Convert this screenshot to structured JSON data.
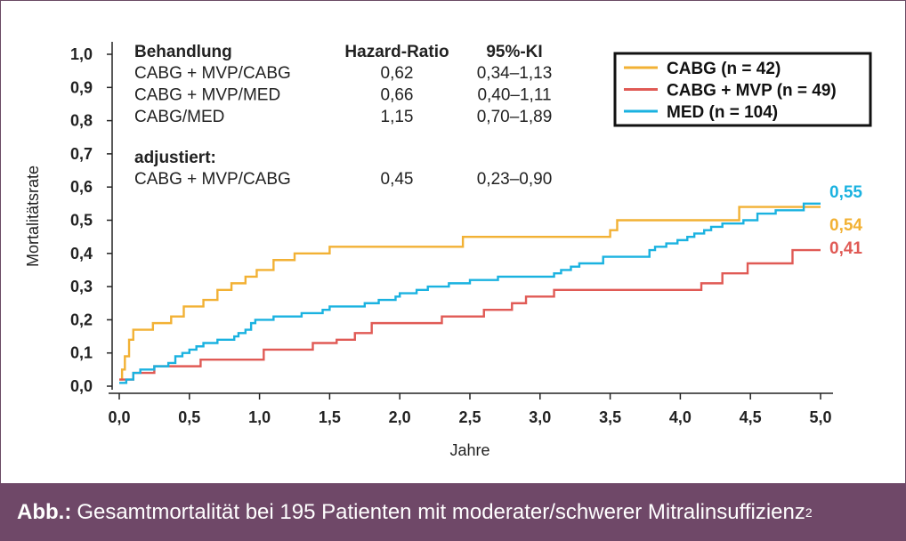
{
  "chart_data": {
    "type": "line",
    "step": true,
    "xlabel": "Jahre",
    "ylabel": "Mortalitätsrate",
    "xlim": [
      0,
      5
    ],
    "ylim": [
      0,
      1
    ],
    "x_ticks": [
      "0,0",
      "0,5",
      "1,0",
      "1,5",
      "2,0",
      "2,5",
      "3,0",
      "3,5",
      "4,0",
      "4,5",
      "5,0"
    ],
    "y_ticks": [
      "0,0",
      "0,1",
      "0,2",
      "0,3",
      "0,4",
      "0,5",
      "0,6",
      "0,7",
      "0,8",
      "0,9",
      "1,0"
    ],
    "grid": false,
    "legend_position": "top-right",
    "series": [
      {
        "name": "CABG (n = 42)",
        "color": "#f2b134",
        "end_label": "0,54",
        "points": [
          [
            0,
            0.02
          ],
          [
            0.02,
            0.05
          ],
          [
            0.04,
            0.09
          ],
          [
            0.07,
            0.14
          ],
          [
            0.1,
            0.17
          ],
          [
            0.24,
            0.19
          ],
          [
            0.37,
            0.21
          ],
          [
            0.46,
            0.24
          ],
          [
            0.6,
            0.26
          ],
          [
            0.7,
            0.29
          ],
          [
            0.8,
            0.31
          ],
          [
            0.9,
            0.33
          ],
          [
            0.98,
            0.35
          ],
          [
            1.1,
            0.38
          ],
          [
            1.25,
            0.4
          ],
          [
            1.5,
            0.42
          ],
          [
            2.45,
            0.45
          ],
          [
            3.5,
            0.47
          ],
          [
            3.55,
            0.5
          ],
          [
            4.42,
            0.54
          ],
          [
            5.0,
            0.54
          ]
        ]
      },
      {
        "name": "CABG + MVP (n = 49)",
        "color": "#e05a55",
        "end_label": "0,41",
        "points": [
          [
            0,
            0.02
          ],
          [
            0.1,
            0.04
          ],
          [
            0.25,
            0.06
          ],
          [
            0.58,
            0.08
          ],
          [
            1.03,
            0.11
          ],
          [
            1.38,
            0.13
          ],
          [
            1.55,
            0.14
          ],
          [
            1.68,
            0.16
          ],
          [
            1.8,
            0.19
          ],
          [
            2.3,
            0.21
          ],
          [
            2.6,
            0.23
          ],
          [
            2.8,
            0.25
          ],
          [
            2.9,
            0.27
          ],
          [
            3.1,
            0.29
          ],
          [
            4.15,
            0.31
          ],
          [
            4.3,
            0.34
          ],
          [
            4.48,
            0.37
          ],
          [
            4.8,
            0.41
          ],
          [
            5.0,
            0.41
          ]
        ]
      },
      {
        "name": "MED (n = 104)",
        "color": "#1ab2e0",
        "end_label": "0,55",
        "points": [
          [
            0,
            0.01
          ],
          [
            0.05,
            0.02
          ],
          [
            0.1,
            0.04
          ],
          [
            0.15,
            0.05
          ],
          [
            0.25,
            0.06
          ],
          [
            0.35,
            0.07
          ],
          [
            0.4,
            0.09
          ],
          [
            0.45,
            0.1
          ],
          [
            0.5,
            0.11
          ],
          [
            0.55,
            0.12
          ],
          [
            0.6,
            0.13
          ],
          [
            0.7,
            0.14
          ],
          [
            0.82,
            0.15
          ],
          [
            0.85,
            0.16
          ],
          [
            0.9,
            0.17
          ],
          [
            0.94,
            0.19
          ],
          [
            0.97,
            0.2
          ],
          [
            1.1,
            0.21
          ],
          [
            1.3,
            0.22
          ],
          [
            1.45,
            0.23
          ],
          [
            1.5,
            0.24
          ],
          [
            1.75,
            0.25
          ],
          [
            1.85,
            0.26
          ],
          [
            1.97,
            0.27
          ],
          [
            2.0,
            0.28
          ],
          [
            2.12,
            0.29
          ],
          [
            2.2,
            0.3
          ],
          [
            2.35,
            0.31
          ],
          [
            2.5,
            0.32
          ],
          [
            2.7,
            0.33
          ],
          [
            3.1,
            0.34
          ],
          [
            3.15,
            0.35
          ],
          [
            3.22,
            0.36
          ],
          [
            3.28,
            0.37
          ],
          [
            3.45,
            0.39
          ],
          [
            3.78,
            0.41
          ],
          [
            3.82,
            0.42
          ],
          [
            3.9,
            0.43
          ],
          [
            3.98,
            0.44
          ],
          [
            4.05,
            0.45
          ],
          [
            4.1,
            0.46
          ],
          [
            4.17,
            0.47
          ],
          [
            4.22,
            0.48
          ],
          [
            4.3,
            0.49
          ],
          [
            4.45,
            0.5
          ],
          [
            4.55,
            0.52
          ],
          [
            4.68,
            0.53
          ],
          [
            4.88,
            0.55
          ],
          [
            5.0,
            0.55
          ]
        ]
      }
    ]
  },
  "stats_table": {
    "headers": [
      "Behandlung",
      "Hazard-Ratio",
      "95%-KI"
    ],
    "rows": [
      [
        "CABG + MVP/CABG",
        "0,62",
        "0,34–1,13"
      ],
      [
        "CABG + MVP/MED",
        "0,66",
        "0,40–1,11"
      ],
      [
        "CABG/MED",
        "1,15",
        "0,70–1,89"
      ]
    ],
    "adjusted_label": "adjustiert:",
    "adjusted_row": [
      "CABG + MVP/CABG",
      "0,45",
      "0,23–0,90"
    ]
  },
  "caption": {
    "label": "Abb.:",
    "text": "Gesamtmortalität bei 195 Patienten mit moderater/schwerer Mitralinsuffizienz",
    "superscript": "2"
  }
}
